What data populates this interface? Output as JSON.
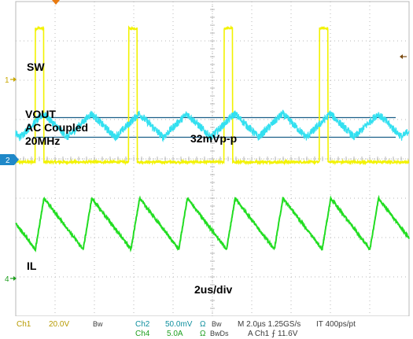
{
  "chart_data": {
    "type": "line",
    "title": "",
    "x_units": "us",
    "time_per_div_us": 2.0,
    "x_divisions": 10,
    "y_divisions": 8,
    "grid": true,
    "series": [
      {
        "name": "SW",
        "channel": "1",
        "color": "#f2f200",
        "kind": "pulse",
        "period_us": 4.85,
        "rise_times_us": [
          1.0,
          5.75,
          10.6,
          15.45
        ],
        "pulse_width_us": 0.42,
        "low_div": -0.3,
        "high_div": 3.1
      },
      {
        "name": "VOUT AC Coupled 20MHz",
        "channel": "2",
        "color": "#33e0f0",
        "kind": "triangle",
        "period_us": 2.43,
        "peak_to_peak_mV": 32,
        "center_div": 0.0,
        "amplitude_div": 0.3,
        "noise_div": 0.1
      },
      {
        "name": "IL",
        "channel": "4",
        "color": "#22dd22",
        "kind": "sawtooth",
        "period_us": 2.43,
        "min_div": -2.3,
        "max_div": -1.0
      }
    ],
    "annotations": {
      "sw": "SW",
      "vout_lines": [
        "VOUT",
        "AC Coupled",
        "20MHz"
      ],
      "ripple": "32mVp-p",
      "il": "IL",
      "timebase": "2us/div"
    },
    "markers": {
      "ch1": "1",
      "ch2": "2",
      "ch4": "4"
    },
    "status_bar": {
      "ch1_label": "Ch1",
      "ch1_scale": "20.0V",
      "bw1": "Bw",
      "ch2_label": "Ch2",
      "ch2_scale": "50.0mV",
      "ohm2": "Ω",
      "bw2": "Bw",
      "ch4_label": "Ch4",
      "ch4_scale": "5.0A",
      "ohm4": "Ω",
      "bw4": "BwDs",
      "horizontal": "M 2.0µs 1.25GS/s",
      "record": "IT 400ps/pt",
      "trigger": "A  Ch1  ⨍  11.6V"
    },
    "colors": {
      "grid": "#b8b8b8",
      "cursor": "#1b5f88",
      "trigger_marker": "#e87a10"
    }
  }
}
